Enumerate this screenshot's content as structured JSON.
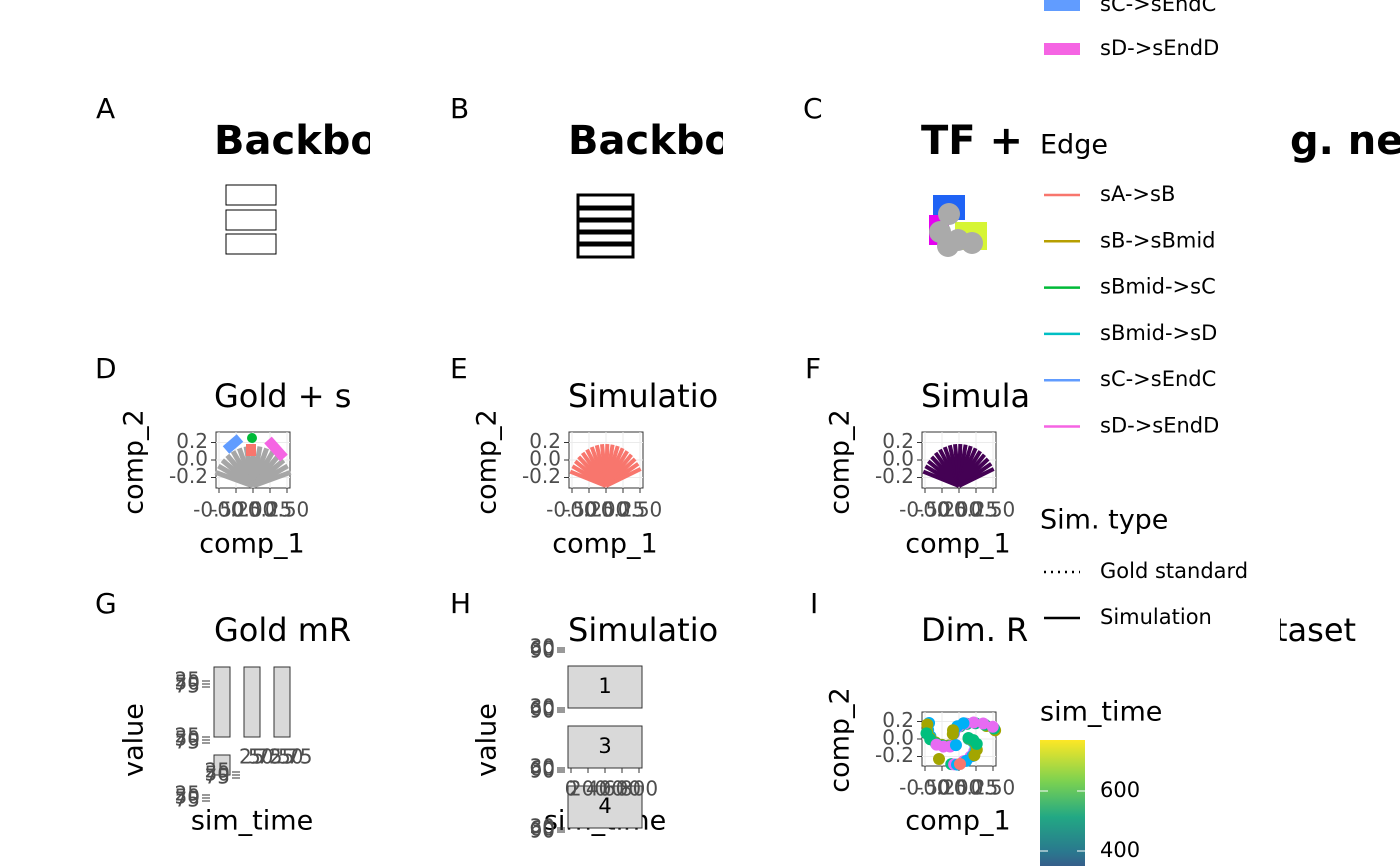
{
  "top_legend": {
    "entries": [
      {
        "label": "sC->sEndC",
        "color": "#619CFF"
      },
      {
        "label": "sD->sEndD",
        "color": "#F564E3"
      }
    ]
  },
  "panels": [
    {
      "tag": "A",
      "title": "Backbo"
    },
    {
      "tag": "B",
      "title": "Backbo"
    },
    {
      "tag": "C",
      "title": "TF +",
      "title_end": "g. net."
    },
    {
      "tag": "D",
      "title": "Gold + s",
      "x_label": "comp_1",
      "y_label": "comp_2",
      "xticks": [
        {
          "value": -0.5,
          "label": "-0.50"
        },
        {
          "value": -0.25,
          "label": "-0.25"
        },
        {
          "value": 0,
          "label": "0.00"
        },
        {
          "value": 0.25,
          "label": "0.25"
        },
        {
          "value": 0.5,
          "label": "0.50"
        }
      ],
      "yticks": [
        0.2,
        {
          "value": 0,
          "label": "0.0"
        },
        -0.2
      ]
    },
    {
      "tag": "E",
      "title": "Simulatio",
      "x_label": "comp_1",
      "y_label": "comp_2",
      "xticks": [
        {
          "value": -0.5,
          "label": "-0.50"
        },
        {
          "value": -0.25,
          "label": "-0.25"
        },
        {
          "value": 0,
          "label": "0.00"
        },
        {
          "value": 0.25,
          "label": "0.25"
        },
        {
          "value": 0.5,
          "label": "0.50"
        }
      ],
      "yticks": [
        0.2,
        {
          "value": 0,
          "label": "0.0"
        },
        -0.2
      ]
    },
    {
      "tag": "F",
      "title": "Simula",
      "x_label": "comp_1",
      "y_label": "comp_2",
      "xticks": [
        {
          "value": -0.5,
          "label": "-0.50"
        },
        {
          "value": -0.25,
          "label": "-0.25"
        },
        {
          "value": 0,
          "label": "0.00"
        },
        {
          "value": 0.25,
          "label": "0.25"
        },
        {
          "value": 0.5,
          "label": "0.50"
        }
      ],
      "yticks": [
        0.2,
        {
          "value": 0,
          "label": "0.0"
        },
        -0.2
      ]
    },
    {
      "tag": "G",
      "title": "Gold mR",
      "x_label": "sim_time",
      "y_label": "value",
      "yticks": [
        25,
        50,
        75
      ]
    },
    {
      "tag": "H",
      "title": "Simulatio",
      "x_label": "sim_time",
      "y_label": "value",
      "yticks": [
        30,
        60,
        90
      ],
      "xticks": [
        0,
        200,
        400,
        600,
        800
      ],
      "strips": [
        "1",
        "3",
        "4"
      ]
    },
    {
      "tag": "I",
      "title": "Dim. R",
      "title_end": "taset",
      "x_label": "comp_1",
      "y_label": "comp_2",
      "xticks": [
        {
          "value": -0.5,
          "label": "-0.50"
        },
        {
          "value": -0.25,
          "label": "-0.25"
        },
        {
          "value": 0,
          "label": "0.00"
        },
        {
          "value": 0.25,
          "label": "0.25"
        },
        {
          "value": 0.5,
          "label": "0.50"
        }
      ],
      "yticks": [
        0.2,
        {
          "value": 0,
          "label": "0.0"
        },
        -0.2
      ]
    }
  ],
  "edge_legend": {
    "title": "Edge",
    "entries": [
      {
        "label": "sA->sB",
        "color": "#F8766D"
      },
      {
        "label": "sB->sBmid",
        "color": "#B79F00"
      },
      {
        "label": "sBmid->sC",
        "color": "#00BA38"
      },
      {
        "label": "sBmid->sD",
        "color": "#00BFC4"
      },
      {
        "label": "sC->sEndC",
        "color": "#619CFF"
      },
      {
        "label": "sD->sEndD",
        "color": "#F564E3"
      }
    ]
  },
  "sim_type_legend": {
    "title": "Sim. type",
    "entries": [
      {
        "label": "Gold standard",
        "dash": "dotted"
      },
      {
        "label": "Simulation",
        "dash": "solid"
      }
    ]
  },
  "sim_time_legend": {
    "title": "sim_time",
    "ticks": [
      600,
      400
    ]
  }
}
